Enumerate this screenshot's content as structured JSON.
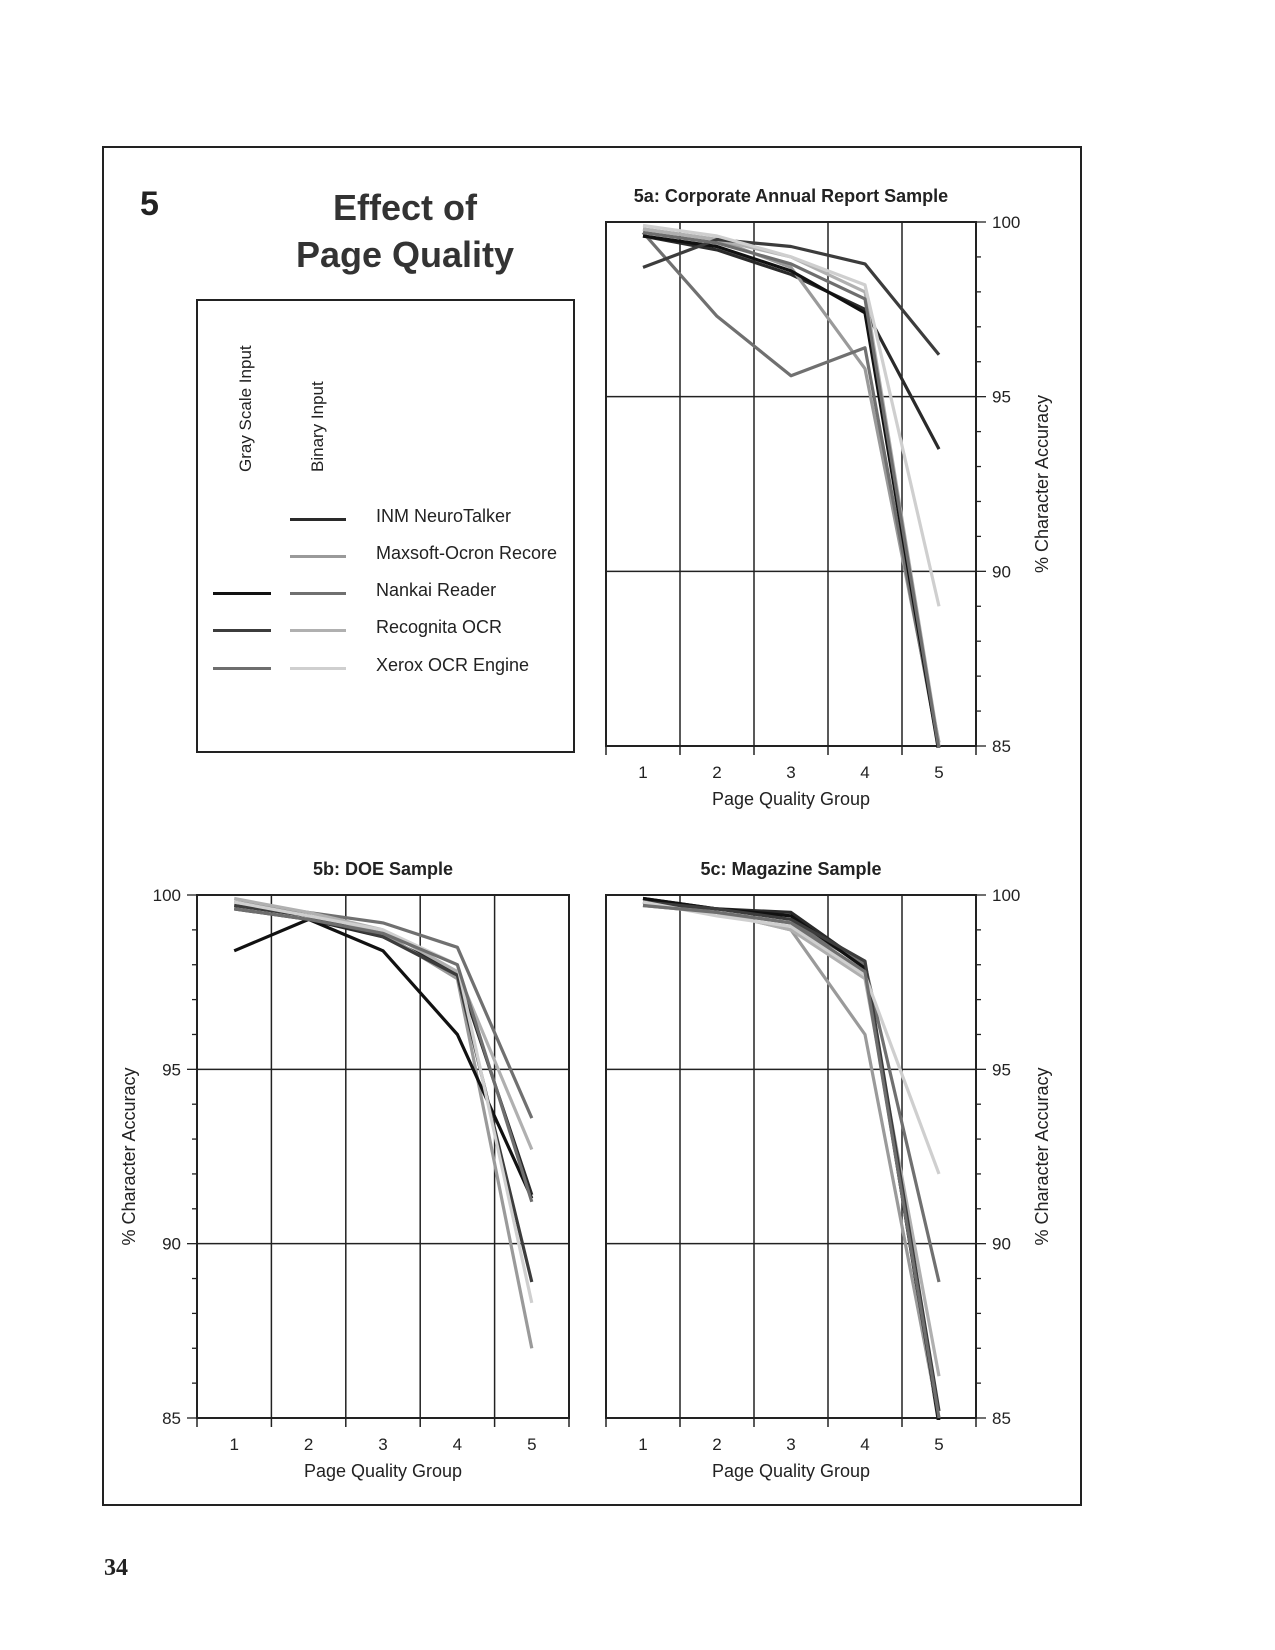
{
  "figure": {
    "number": "5",
    "title_line1": "Effect of",
    "title_line2": "Page Quality",
    "page_number": "34"
  },
  "legend": {
    "col_gray": "Gray Scale Input",
    "col_binary": "Binary Input",
    "entries": [
      {
        "label": "INM NeuroTalker",
        "gray": null,
        "binary": "#2a2a2a"
      },
      {
        "label": "Maxsoft-Ocron Recore",
        "gray": null,
        "binary": "#9a9a9a"
      },
      {
        "label": "Nankai Reader",
        "gray": "#111111",
        "binary": "#707070"
      },
      {
        "label": "Recognita OCR",
        "gray": "#3c3c3c",
        "binary": "#b0b0b0"
      },
      {
        "label": "Xerox OCR Engine",
        "gray": "#6e6e6e",
        "binary": "#cfcfcf"
      }
    ]
  },
  "chart_data": [
    {
      "type": "line",
      "title": "5a: Corporate Annual Report Sample",
      "xlabel": "Page Quality Group",
      "ylabel": "% Character Accuracy",
      "x": [
        1,
        2,
        3,
        4,
        5
      ],
      "xlim": [
        0.5,
        5.5
      ],
      "ylim": [
        85,
        100
      ],
      "yticks": [
        85,
        90,
        95,
        100
      ],
      "y_axis_side": "right",
      "grid": true,
      "series": [
        {
          "name": "INM NeuroTalker",
          "input": "Binary",
          "color": "#2a2a2a",
          "values": [
            99.6,
            99.2,
            98.5,
            97.5,
            93.5
          ]
        },
        {
          "name": "Maxsoft-Ocron Recore",
          "input": "Binary",
          "color": "#9a9a9a",
          "values": [
            99.8,
            99.5,
            98.7,
            95.8,
            85.1
          ]
        },
        {
          "name": "Nankai Reader",
          "input": "Binary",
          "color": "#707070",
          "values": [
            99.7,
            97.3,
            95.6,
            96.4,
            84.9
          ]
        },
        {
          "name": "Nankai Reader",
          "input": "Gray Scale",
          "color": "#111111",
          "values": [
            99.6,
            99.3,
            98.6,
            97.4,
            84.8
          ]
        },
        {
          "name": "Recognita OCR",
          "input": "Binary",
          "color": "#b0b0b0",
          "values": [
            99.8,
            99.5,
            99.0,
            98.0,
            85.0
          ]
        },
        {
          "name": "Recognita OCR",
          "input": "Gray Scale",
          "color": "#3c3c3c",
          "values": [
            98.7,
            99.5,
            99.3,
            98.8,
            96.2
          ]
        },
        {
          "name": "Xerox OCR Engine",
          "input": "Binary",
          "color": "#cfcfcf",
          "values": [
            99.9,
            99.6,
            99.0,
            98.2,
            89.0
          ]
        },
        {
          "name": "Xerox OCR Engine",
          "input": "Gray Scale",
          "color": "#6e6e6e",
          "values": [
            99.7,
            99.4,
            98.8,
            97.8,
            84.9
          ]
        }
      ]
    },
    {
      "type": "line",
      "title": "5b: DOE Sample",
      "xlabel": "Page Quality Group",
      "ylabel": "% Character Accuracy",
      "x": [
        1,
        2,
        3,
        4,
        5
      ],
      "xlim": [
        0.5,
        5.5
      ],
      "ylim": [
        85,
        100
      ],
      "yticks": [
        85,
        90,
        95,
        100
      ],
      "y_axis_side": "left",
      "grid": true,
      "series": [
        {
          "name": "INM NeuroTalker",
          "input": "Binary",
          "color": "#2a2a2a",
          "values": [
            99.6,
            99.3,
            98.8,
            97.8,
            91.4
          ]
        },
        {
          "name": "Maxsoft-Ocron Recore",
          "input": "Binary",
          "color": "#9a9a9a",
          "values": [
            99.7,
            99.4,
            98.9,
            97.6,
            87.0
          ]
        },
        {
          "name": "Nankai Reader",
          "input": "Binary",
          "color": "#707070",
          "values": [
            99.8,
            99.5,
            99.2,
            98.5,
            93.6
          ]
        },
        {
          "name": "Nankai Reader",
          "input": "Gray Scale",
          "color": "#111111",
          "values": [
            98.4,
            99.3,
            98.4,
            96.0,
            91.3
          ]
        },
        {
          "name": "Recognita OCR",
          "input": "Binary",
          "color": "#b0b0b0",
          "values": [
            99.9,
            99.5,
            99.0,
            97.8,
            92.7
          ]
        },
        {
          "name": "Recognita OCR",
          "input": "Gray Scale",
          "color": "#3c3c3c",
          "values": [
            99.7,
            99.4,
            98.8,
            97.7,
            88.9
          ]
        },
        {
          "name": "Xerox OCR Engine",
          "input": "Binary",
          "color": "#cfcfcf",
          "values": [
            99.8,
            99.4,
            99.0,
            98.0,
            88.3
          ]
        },
        {
          "name": "Xerox OCR Engine",
          "input": "Gray Scale",
          "color": "#6e6e6e",
          "values": [
            99.6,
            99.3,
            98.9,
            98.0,
            91.2
          ]
        }
      ]
    },
    {
      "type": "line",
      "title": "5c: Magazine Sample",
      "xlabel": "Page Quality Group",
      "ylabel": "% Character Accuracy",
      "x": [
        1,
        2,
        3,
        4,
        5
      ],
      "xlim": [
        0.5,
        5.5
      ],
      "ylim": [
        85,
        100
      ],
      "yticks": [
        85,
        90,
        95,
        100
      ],
      "y_axis_side": "right",
      "grid": true,
      "series": [
        {
          "name": "INM NeuroTalker",
          "input": "Binary",
          "color": "#2a2a2a",
          "values": [
            99.9,
            99.6,
            99.5,
            98.0,
            84.8
          ]
        },
        {
          "name": "Maxsoft-Ocron Recore",
          "input": "Binary",
          "color": "#9a9a9a",
          "values": [
            99.7,
            99.5,
            99.0,
            96.0,
            85.0
          ]
        },
        {
          "name": "Nankai Reader",
          "input": "Binary",
          "color": "#707070",
          "values": [
            99.8,
            99.5,
            99.2,
            98.0,
            88.9
          ]
        },
        {
          "name": "Nankai Reader",
          "input": "Gray Scale",
          "color": "#111111",
          "values": [
            99.9,
            99.6,
            99.4,
            97.9,
            84.9
          ]
        },
        {
          "name": "Recognita OCR",
          "input": "Binary",
          "color": "#b0b0b0",
          "values": [
            99.7,
            99.5,
            99.0,
            97.6,
            86.2
          ]
        },
        {
          "name": "Recognita OCR",
          "input": "Gray Scale",
          "color": "#3c3c3c",
          "values": [
            99.8,
            99.6,
            99.3,
            98.1,
            85.2
          ]
        },
        {
          "name": "Xerox OCR Engine",
          "input": "Binary",
          "color": "#cfcfcf",
          "values": [
            99.8,
            99.4,
            99.1,
            97.7,
            92.0
          ]
        },
        {
          "name": "Xerox OCR Engine",
          "input": "Gray Scale",
          "color": "#6e6e6e",
          "values": [
            99.7,
            99.5,
            99.2,
            97.8,
            85.0
          ]
        }
      ]
    }
  ]
}
